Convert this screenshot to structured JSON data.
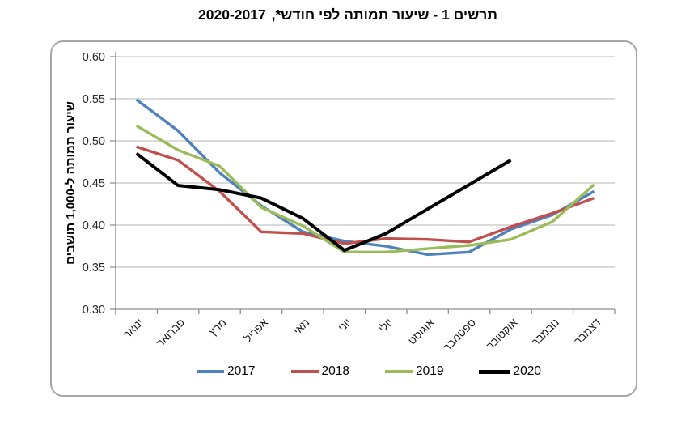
{
  "header": {
    "title_main": "תרשים 1 - שיעור תמותה לפי חודש*,",
    "title_years": "2020-2017"
  },
  "chart_data": {
    "type": "line",
    "title": "תרשים 1 - שיעור תמותה לפי חודש*, 2017-2020",
    "ylabel": "שיעור תמותה ל-1,000 תושבים",
    "xlabel": "",
    "categories": [
      "ינואר",
      "פברואר",
      "מרץ",
      "אפריל",
      "מאי",
      "יוני",
      "יולי",
      "אוגוסט",
      "ספטמבר",
      "אוקטובר",
      "נובמבר",
      "דצמבר"
    ],
    "ylim": [
      0.3,
      0.6
    ],
    "ytick_step": 0.05,
    "ytick_labels": [
      "0.60",
      "0.55",
      "0.50",
      "0.45",
      "0.40",
      "0.35",
      "0.30"
    ],
    "grid": true,
    "legend_position": "bottom",
    "series": [
      {
        "name": "2017",
        "color": "#4F81BD",
        "values": [
          0.549,
          0.512,
          0.462,
          0.423,
          0.392,
          0.381,
          0.375,
          0.365,
          0.368,
          0.395,
          0.412,
          0.44
        ]
      },
      {
        "name": "2018",
        "color": "#C0504D",
        "values": [
          0.493,
          0.477,
          0.44,
          0.392,
          0.39,
          0.378,
          0.384,
          0.383,
          0.38,
          0.398,
          0.414,
          0.432
        ]
      },
      {
        "name": "2019",
        "color": "#9BBB59",
        "values": [
          0.518,
          0.489,
          0.47,
          0.421,
          0.399,
          0.368,
          0.368,
          0.372,
          0.376,
          0.383,
          0.404,
          0.448
        ]
      },
      {
        "name": "2020",
        "color": "#000000",
        "values": [
          0.485,
          0.447,
          0.442,
          0.432,
          0.408,
          0.37,
          0.39,
          0.419,
          0.448,
          0.477,
          null,
          null
        ]
      }
    ]
  }
}
